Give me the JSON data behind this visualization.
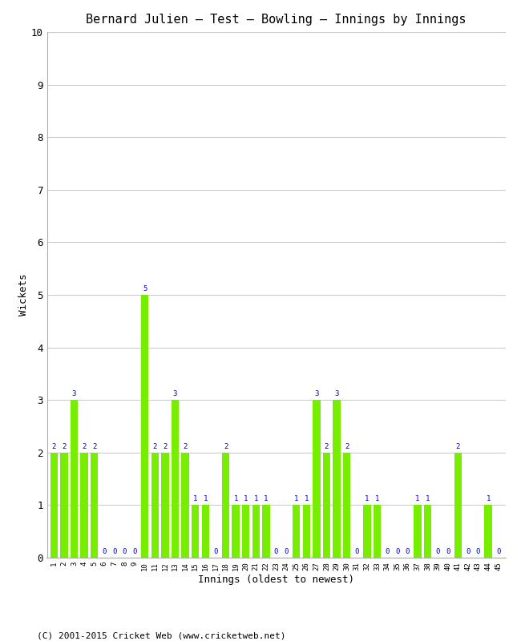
{
  "title": "Bernard Julien – Test – Bowling – Innings by Innings",
  "xlabel": "Innings (oldest to newest)",
  "ylabel": "Wickets",
  "footer": "(C) 2001-2015 Cricket Web (www.cricketweb.net)",
  "bar_color": "#77ee00",
  "label_color": "#0000cc",
  "background_color": "#ffffff",
  "grid_color": "#cccccc",
  "ylim": [
    0,
    10
  ],
  "yticks": [
    0,
    1,
    2,
    3,
    4,
    5,
    6,
    7,
    8,
    9,
    10
  ],
  "innings": [
    1,
    2,
    3,
    4,
    5,
    6,
    7,
    8,
    9,
    10,
    11,
    12,
    13,
    14,
    15,
    16,
    17,
    18,
    19,
    20,
    21,
    22,
    23,
    24,
    25,
    26,
    27,
    28,
    29,
    30,
    31,
    32,
    33,
    34,
    35,
    36,
    37,
    38,
    39,
    40,
    41,
    42,
    43,
    44,
    45
  ],
  "wickets": [
    2,
    2,
    3,
    2,
    2,
    0,
    0,
    0,
    0,
    5,
    2,
    2,
    3,
    2,
    1,
    1,
    0,
    2,
    1,
    1,
    1,
    1,
    0,
    0,
    1,
    1,
    3,
    2,
    3,
    2,
    0,
    1,
    1,
    0,
    0,
    0,
    1,
    1,
    0,
    0,
    2,
    0,
    0,
    1,
    0
  ]
}
